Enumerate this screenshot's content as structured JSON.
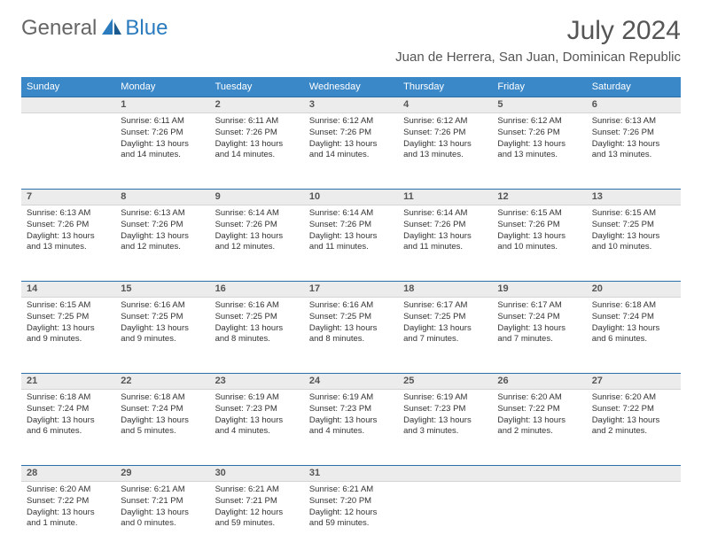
{
  "brand": {
    "general": "General",
    "blue": "Blue"
  },
  "title": "July 2024",
  "location": "Juan de Herrera, San Juan, Dominican Republic",
  "colors": {
    "header_bg": "#3b88c9",
    "header_text": "#ffffff",
    "daynum_bg": "#ececec",
    "row_sep": "#2b6fa8",
    "brand_blue": "#2b7bbf",
    "text": "#333333"
  },
  "weekdays": [
    "Sunday",
    "Monday",
    "Tuesday",
    "Wednesday",
    "Thursday",
    "Friday",
    "Saturday"
  ],
  "weeks": [
    [
      null,
      {
        "n": "1",
        "sr": "Sunrise: 6:11 AM",
        "ss": "Sunset: 7:26 PM",
        "d1": "Daylight: 13 hours",
        "d2": "and 14 minutes."
      },
      {
        "n": "2",
        "sr": "Sunrise: 6:11 AM",
        "ss": "Sunset: 7:26 PM",
        "d1": "Daylight: 13 hours",
        "d2": "and 14 minutes."
      },
      {
        "n": "3",
        "sr": "Sunrise: 6:12 AM",
        "ss": "Sunset: 7:26 PM",
        "d1": "Daylight: 13 hours",
        "d2": "and 14 minutes."
      },
      {
        "n": "4",
        "sr": "Sunrise: 6:12 AM",
        "ss": "Sunset: 7:26 PM",
        "d1": "Daylight: 13 hours",
        "d2": "and 13 minutes."
      },
      {
        "n": "5",
        "sr": "Sunrise: 6:12 AM",
        "ss": "Sunset: 7:26 PM",
        "d1": "Daylight: 13 hours",
        "d2": "and 13 minutes."
      },
      {
        "n": "6",
        "sr": "Sunrise: 6:13 AM",
        "ss": "Sunset: 7:26 PM",
        "d1": "Daylight: 13 hours",
        "d2": "and 13 minutes."
      }
    ],
    [
      {
        "n": "7",
        "sr": "Sunrise: 6:13 AM",
        "ss": "Sunset: 7:26 PM",
        "d1": "Daylight: 13 hours",
        "d2": "and 13 minutes."
      },
      {
        "n": "8",
        "sr": "Sunrise: 6:13 AM",
        "ss": "Sunset: 7:26 PM",
        "d1": "Daylight: 13 hours",
        "d2": "and 12 minutes."
      },
      {
        "n": "9",
        "sr": "Sunrise: 6:14 AM",
        "ss": "Sunset: 7:26 PM",
        "d1": "Daylight: 13 hours",
        "d2": "and 12 minutes."
      },
      {
        "n": "10",
        "sr": "Sunrise: 6:14 AM",
        "ss": "Sunset: 7:26 PM",
        "d1": "Daylight: 13 hours",
        "d2": "and 11 minutes."
      },
      {
        "n": "11",
        "sr": "Sunrise: 6:14 AM",
        "ss": "Sunset: 7:26 PM",
        "d1": "Daylight: 13 hours",
        "d2": "and 11 minutes."
      },
      {
        "n": "12",
        "sr": "Sunrise: 6:15 AM",
        "ss": "Sunset: 7:26 PM",
        "d1": "Daylight: 13 hours",
        "d2": "and 10 minutes."
      },
      {
        "n": "13",
        "sr": "Sunrise: 6:15 AM",
        "ss": "Sunset: 7:25 PM",
        "d1": "Daylight: 13 hours",
        "d2": "and 10 minutes."
      }
    ],
    [
      {
        "n": "14",
        "sr": "Sunrise: 6:15 AM",
        "ss": "Sunset: 7:25 PM",
        "d1": "Daylight: 13 hours",
        "d2": "and 9 minutes."
      },
      {
        "n": "15",
        "sr": "Sunrise: 6:16 AM",
        "ss": "Sunset: 7:25 PM",
        "d1": "Daylight: 13 hours",
        "d2": "and 9 minutes."
      },
      {
        "n": "16",
        "sr": "Sunrise: 6:16 AM",
        "ss": "Sunset: 7:25 PM",
        "d1": "Daylight: 13 hours",
        "d2": "and 8 minutes."
      },
      {
        "n": "17",
        "sr": "Sunrise: 6:16 AM",
        "ss": "Sunset: 7:25 PM",
        "d1": "Daylight: 13 hours",
        "d2": "and 8 minutes."
      },
      {
        "n": "18",
        "sr": "Sunrise: 6:17 AM",
        "ss": "Sunset: 7:25 PM",
        "d1": "Daylight: 13 hours",
        "d2": "and 7 minutes."
      },
      {
        "n": "19",
        "sr": "Sunrise: 6:17 AM",
        "ss": "Sunset: 7:24 PM",
        "d1": "Daylight: 13 hours",
        "d2": "and 7 minutes."
      },
      {
        "n": "20",
        "sr": "Sunrise: 6:18 AM",
        "ss": "Sunset: 7:24 PM",
        "d1": "Daylight: 13 hours",
        "d2": "and 6 minutes."
      }
    ],
    [
      {
        "n": "21",
        "sr": "Sunrise: 6:18 AM",
        "ss": "Sunset: 7:24 PM",
        "d1": "Daylight: 13 hours",
        "d2": "and 6 minutes."
      },
      {
        "n": "22",
        "sr": "Sunrise: 6:18 AM",
        "ss": "Sunset: 7:24 PM",
        "d1": "Daylight: 13 hours",
        "d2": "and 5 minutes."
      },
      {
        "n": "23",
        "sr": "Sunrise: 6:19 AM",
        "ss": "Sunset: 7:23 PM",
        "d1": "Daylight: 13 hours",
        "d2": "and 4 minutes."
      },
      {
        "n": "24",
        "sr": "Sunrise: 6:19 AM",
        "ss": "Sunset: 7:23 PM",
        "d1": "Daylight: 13 hours",
        "d2": "and 4 minutes."
      },
      {
        "n": "25",
        "sr": "Sunrise: 6:19 AM",
        "ss": "Sunset: 7:23 PM",
        "d1": "Daylight: 13 hours",
        "d2": "and 3 minutes."
      },
      {
        "n": "26",
        "sr": "Sunrise: 6:20 AM",
        "ss": "Sunset: 7:22 PM",
        "d1": "Daylight: 13 hours",
        "d2": "and 2 minutes."
      },
      {
        "n": "27",
        "sr": "Sunrise: 6:20 AM",
        "ss": "Sunset: 7:22 PM",
        "d1": "Daylight: 13 hours",
        "d2": "and 2 minutes."
      }
    ],
    [
      {
        "n": "28",
        "sr": "Sunrise: 6:20 AM",
        "ss": "Sunset: 7:22 PM",
        "d1": "Daylight: 13 hours",
        "d2": "and 1 minute."
      },
      {
        "n": "29",
        "sr": "Sunrise: 6:21 AM",
        "ss": "Sunset: 7:21 PM",
        "d1": "Daylight: 13 hours",
        "d2": "and 0 minutes."
      },
      {
        "n": "30",
        "sr": "Sunrise: 6:21 AM",
        "ss": "Sunset: 7:21 PM",
        "d1": "Daylight: 12 hours",
        "d2": "and 59 minutes."
      },
      {
        "n": "31",
        "sr": "Sunrise: 6:21 AM",
        "ss": "Sunset: 7:20 PM",
        "d1": "Daylight: 12 hours",
        "d2": "and 59 minutes."
      },
      null,
      null,
      null
    ]
  ]
}
